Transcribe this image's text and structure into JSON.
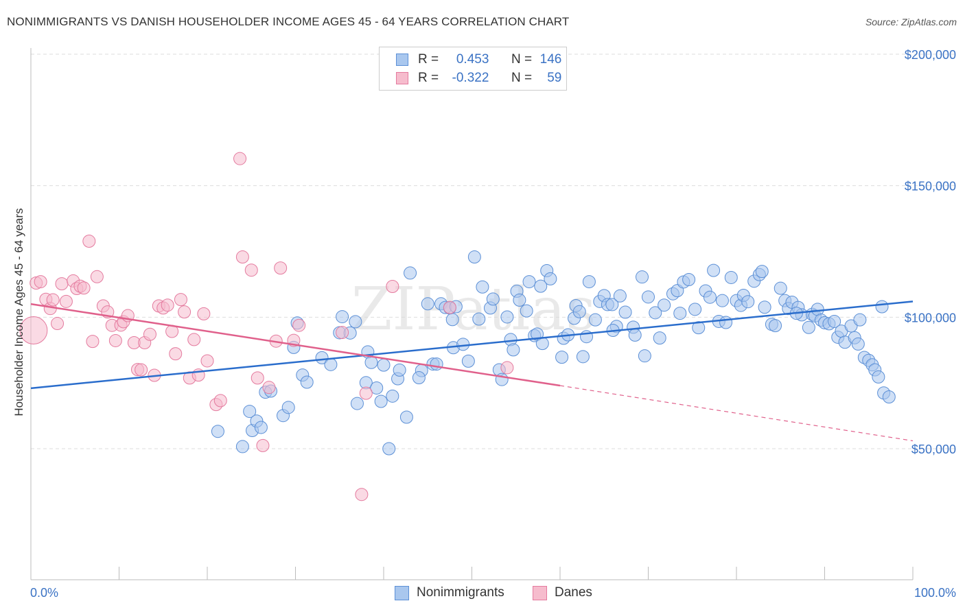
{
  "title": "NONIMMIGRANTS VS DANISH HOUSEHOLDER INCOME AGES 45 - 64 YEARS CORRELATION CHART",
  "source": "Source: ZipAtlas.com",
  "watermark": "ZIPatlas",
  "legend_top": {
    "rows": [
      {
        "r_label": "R =",
        "r_value": "0.453",
        "n_label": "N =",
        "n_value": "146",
        "color": "#5b8fd6"
      },
      {
        "r_label": "R =",
        "r_value": "-0.322",
        "n_label": "N =",
        "n_value": "59",
        "color": "#e47a9e"
      }
    ]
  },
  "legend_bottom": {
    "items": [
      {
        "label": "Nonimmigrants",
        "color": "#5b8fd6"
      },
      {
        "label": "Danes",
        "color": "#e47a9e"
      }
    ]
  },
  "colors": {
    "blue_fill": "#a9c7ee",
    "blue_stroke": "#5b8fd6",
    "blue_line": "#2a6dcc",
    "pink_fill": "#f6bccd",
    "pink_stroke": "#e47a9e",
    "pink_line": "#e0608b",
    "grid": "#dddddd",
    "tick_label": "#3a72c4"
  },
  "chart_data": {
    "type": "scatter",
    "title": "NONIMMIGRANTS VS DANISH HOUSEHOLDER INCOME AGES 45 - 64 YEARS CORRELATION CHART",
    "xlabel": "",
    "ylabel": "Householder Income Ages 45 - 64 years",
    "xlim": [
      0,
      100
    ],
    "ylim": [
      0,
      210000
    ],
    "x_tick_labels": [
      "0.0%",
      "100.0%"
    ],
    "y_ticks": [
      50000,
      100000,
      150000,
      200000
    ],
    "y_tick_labels": [
      "$50,000",
      "$100,000",
      "$150,000",
      "$200,000"
    ],
    "grid": true,
    "legend_position": "top-center",
    "series": [
      {
        "name": "Nonimmigrants",
        "r": 0.453,
        "n": 146,
        "trend": {
          "x": [
            0,
            100
          ],
          "y": [
            73000,
            106000
          ],
          "style": "solid"
        },
        "points": [
          [
            21.2,
            56600
          ],
          [
            24.0,
            50800
          ],
          [
            24.8,
            64200
          ],
          [
            25.1,
            56900
          ],
          [
            25.6,
            60500
          ],
          [
            26.1,
            58100
          ],
          [
            26.6,
            71500
          ],
          [
            27.2,
            71900
          ],
          [
            28.6,
            62600
          ],
          [
            29.2,
            65700
          ],
          [
            29.8,
            88500
          ],
          [
            30.2,
            97800
          ],
          [
            30.8,
            78000
          ],
          [
            31.3,
            75300
          ],
          [
            33.0,
            84600
          ],
          [
            34.0,
            82000
          ],
          [
            35.0,
            94100
          ],
          [
            35.3,
            100200
          ],
          [
            36.2,
            94000
          ],
          [
            36.8,
            98300
          ],
          [
            37.0,
            67200
          ],
          [
            38.0,
            75100
          ],
          [
            38.2,
            86800
          ],
          [
            38.6,
            82800
          ],
          [
            39.2,
            73100
          ],
          [
            39.7,
            68000
          ],
          [
            40.0,
            81800
          ],
          [
            40.6,
            50000
          ],
          [
            41.0,
            70000
          ],
          [
            41.6,
            76600
          ],
          [
            41.8,
            79900
          ],
          [
            42.6,
            62000
          ],
          [
            43.0,
            116800
          ],
          [
            44.3,
            79700
          ],
          [
            45.0,
            105100
          ],
          [
            45.6,
            82200
          ],
          [
            46.0,
            82200
          ],
          [
            46.5,
            105100
          ],
          [
            47.0,
            103700
          ],
          [
            47.5,
            103500
          ],
          [
            47.8,
            99100
          ],
          [
            48.2,
            104000
          ],
          [
            47.9,
            88400
          ],
          [
            49.0,
            89700
          ],
          [
            49.6,
            83300
          ],
          [
            50.3,
            122900
          ],
          [
            50.8,
            99300
          ],
          [
            51.2,
            111500
          ],
          [
            52.1,
            103500
          ],
          [
            52.4,
            106900
          ],
          [
            53.1,
            80000
          ],
          [
            53.4,
            76300
          ],
          [
            54.0,
            100100
          ],
          [
            54.4,
            91500
          ],
          [
            54.7,
            87600
          ],
          [
            55.1,
            109900
          ],
          [
            55.4,
            106500
          ],
          [
            56.2,
            102400
          ],
          [
            56.5,
            113500
          ],
          [
            57.1,
            93000
          ],
          [
            57.4,
            93600
          ],
          [
            57.8,
            111800
          ],
          [
            58.5,
            117700
          ],
          [
            58.9,
            114600
          ],
          [
            60.2,
            84800
          ],
          [
            60.4,
            92000
          ],
          [
            60.9,
            93300
          ],
          [
            61.6,
            99600
          ],
          [
            61.8,
            104400
          ],
          [
            62.2,
            102100
          ],
          [
            62.6,
            85000
          ],
          [
            63.0,
            92600
          ],
          [
            63.3,
            113500
          ],
          [
            64.0,
            99000
          ],
          [
            64.5,
            106000
          ],
          [
            65.0,
            108200
          ],
          [
            65.4,
            104800
          ],
          [
            65.9,
            104800
          ],
          [
            66.4,
            96500
          ],
          [
            66.8,
            108100
          ],
          [
            67.4,
            101900
          ],
          [
            68.3,
            96200
          ],
          [
            68.5,
            93200
          ],
          [
            69.3,
            115300
          ],
          [
            69.6,
            85300
          ],
          [
            70.0,
            107700
          ],
          [
            70.8,
            101700
          ],
          [
            71.3,
            92100
          ],
          [
            71.8,
            104600
          ],
          [
            72.8,
            108900
          ],
          [
            73.3,
            110100
          ],
          [
            73.6,
            101500
          ],
          [
            74.0,
            113400
          ],
          [
            74.6,
            114300
          ],
          [
            75.3,
            103000
          ],
          [
            75.7,
            96000
          ],
          [
            76.5,
            110000
          ],
          [
            77.0,
            107600
          ],
          [
            77.4,
            117800
          ],
          [
            78.0,
            98400
          ],
          [
            78.4,
            106300
          ],
          [
            78.8,
            98000
          ],
          [
            79.4,
            115100
          ],
          [
            80.0,
            106300
          ],
          [
            80.5,
            104500
          ],
          [
            80.8,
            108300
          ],
          [
            81.3,
            105900
          ],
          [
            82.0,
            113700
          ],
          [
            82.6,
            116200
          ],
          [
            82.9,
            117400
          ],
          [
            83.2,
            103800
          ],
          [
            84.0,
            97300
          ],
          [
            84.4,
            96800
          ],
          [
            85.0,
            111000
          ],
          [
            85.5,
            106300
          ],
          [
            85.9,
            103300
          ],
          [
            86.3,
            105700
          ],
          [
            87.0,
            103700
          ],
          [
            87.4,
            100900
          ],
          [
            88.2,
            96100
          ],
          [
            88.6,
            101100
          ],
          [
            88.9,
            100500
          ],
          [
            89.2,
            103000
          ],
          [
            89.6,
            98900
          ],
          [
            90.0,
            97900
          ],
          [
            90.5,
            97500
          ],
          [
            91.1,
            98400
          ],
          [
            91.5,
            92400
          ],
          [
            91.9,
            94700
          ],
          [
            92.3,
            90500
          ],
          [
            93.0,
            96700
          ],
          [
            93.4,
            92200
          ],
          [
            93.8,
            89800
          ],
          [
            94.5,
            84700
          ],
          [
            95.0,
            83600
          ],
          [
            95.4,
            81900
          ],
          [
            95.7,
            80000
          ],
          [
            96.1,
            77300
          ],
          [
            96.7,
            71200
          ],
          [
            97.3,
            69700
          ],
          [
            96.5,
            104000
          ],
          [
            94.0,
            99000
          ],
          [
            86.8,
            101500
          ],
          [
            66.0,
            95000
          ],
          [
            58.0,
            90000
          ],
          [
            44.0,
            77000
          ]
        ]
      },
      {
        "name": "Danes",
        "r": -0.322,
        "n": 59,
        "trend": {
          "x": [
            0,
            60
          ],
          "y": [
            105000,
            74000
          ],
          "style": "solid",
          "extended_to": [
            100,
            53000
          ]
        },
        "points": [
          [
            0.3,
            95000
          ],
          [
            0.6,
            113000
          ],
          [
            1.1,
            113500
          ],
          [
            1.7,
            106800
          ],
          [
            2.2,
            103300
          ],
          [
            2.5,
            106600
          ],
          [
            3.0,
            97600
          ],
          [
            3.5,
            112700
          ],
          [
            4.0,
            106000
          ],
          [
            4.8,
            113800
          ],
          [
            5.2,
            110900
          ],
          [
            5.6,
            111800
          ],
          [
            6.0,
            111100
          ],
          [
            6.6,
            128900
          ],
          [
            7.0,
            90800
          ],
          [
            7.5,
            115400
          ],
          [
            8.2,
            104300
          ],
          [
            8.7,
            102000
          ],
          [
            9.2,
            96900
          ],
          [
            9.6,
            91100
          ],
          [
            10.2,
            97000
          ],
          [
            10.5,
            98300
          ],
          [
            11.0,
            100600
          ],
          [
            11.7,
            90300
          ],
          [
            12.1,
            80100
          ],
          [
            12.5,
            80000
          ],
          [
            12.9,
            90300
          ],
          [
            13.5,
            93500
          ],
          [
            14.0,
            77900
          ],
          [
            14.5,
            104300
          ],
          [
            15.0,
            103500
          ],
          [
            15.5,
            104600
          ],
          [
            16.0,
            94600
          ],
          [
            16.4,
            86100
          ],
          [
            17.0,
            106700
          ],
          [
            17.4,
            102000
          ],
          [
            18.0,
            76900
          ],
          [
            18.5,
            91500
          ],
          [
            19.0,
            78000
          ],
          [
            19.6,
            101300
          ],
          [
            20.0,
            83400
          ],
          [
            21.0,
            66800
          ],
          [
            21.5,
            68300
          ],
          [
            23.7,
            160300
          ],
          [
            24.0,
            122900
          ],
          [
            25.0,
            117900
          ],
          [
            25.7,
            76900
          ],
          [
            26.3,
            51200
          ],
          [
            27.0,
            73300
          ],
          [
            27.8,
            90900
          ],
          [
            28.3,
            118700
          ],
          [
            29.8,
            91200
          ],
          [
            30.4,
            96900
          ],
          [
            35.3,
            94200
          ],
          [
            37.5,
            32600
          ],
          [
            38.0,
            71100
          ],
          [
            41.0,
            111700
          ],
          [
            47.5,
            103700
          ],
          [
            54.0,
            80800
          ]
        ]
      }
    ]
  }
}
